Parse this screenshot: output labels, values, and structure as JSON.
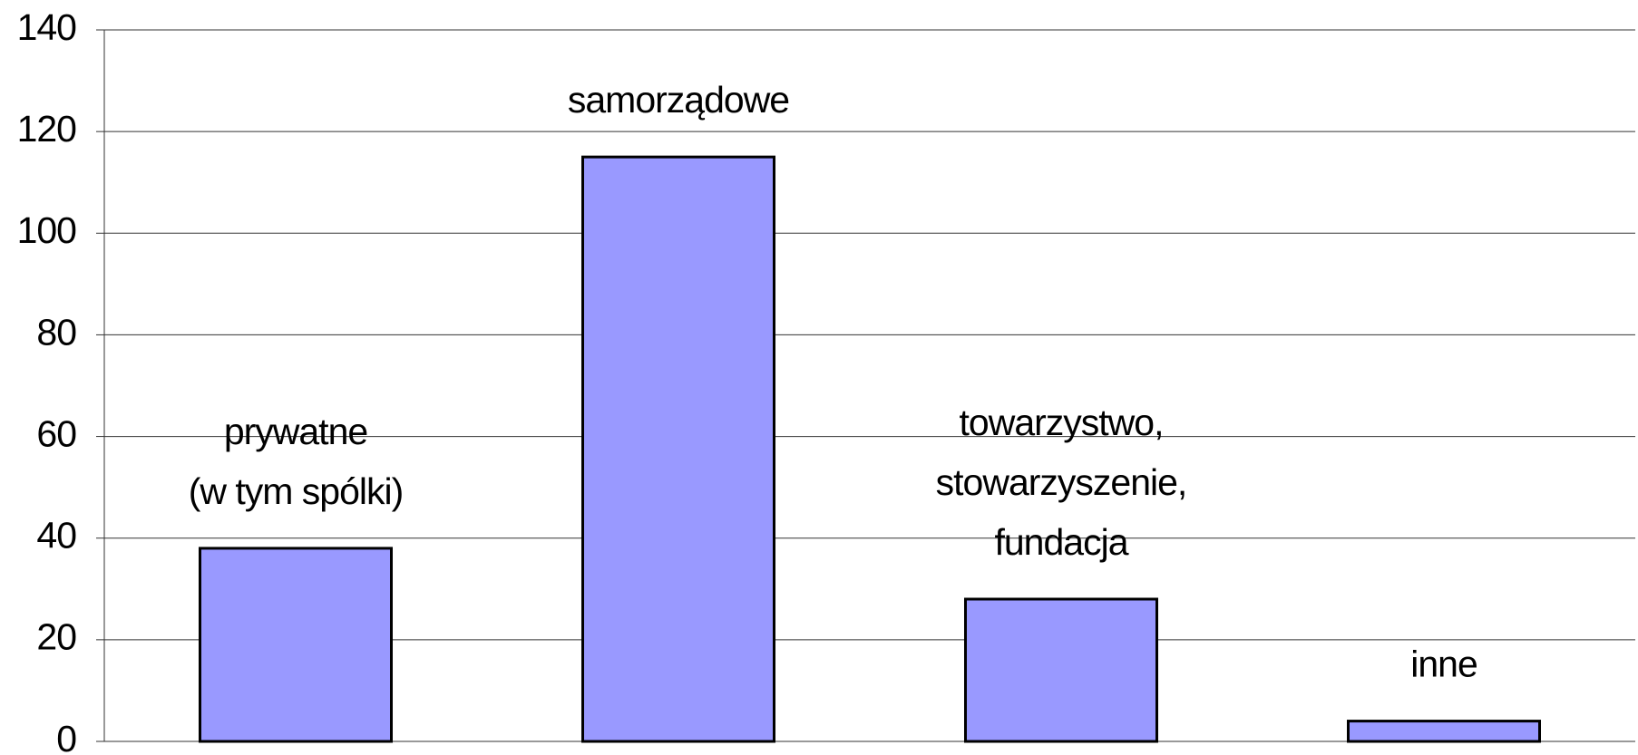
{
  "chart_data": {
    "type": "bar",
    "categories": [
      [
        "prywatne",
        "(w tym spólki)"
      ],
      [
        "samorządowe"
      ],
      [
        "towarzystwo,",
        "stowarzyszenie,",
        "fundacja"
      ],
      [
        "inne"
      ]
    ],
    "values": [
      38,
      115,
      28,
      4
    ],
    "color": "#9999ff",
    "ylim": [
      0,
      140
    ],
    "yticks": [
      0,
      20,
      40,
      60,
      80,
      100,
      120,
      140
    ],
    "grid": true
  }
}
